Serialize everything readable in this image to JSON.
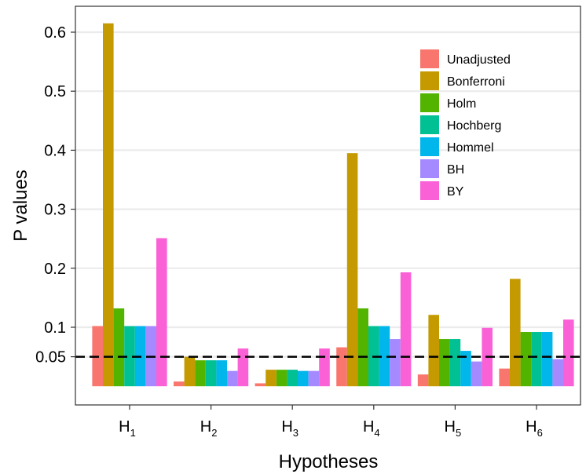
{
  "chart_data": {
    "type": "bar",
    "title": "",
    "xlabel": "Hypotheses",
    "ylabel": "P values",
    "ylim": [
      -0.03,
      0.67
    ],
    "bar_base": 0.0,
    "yticks": [
      {
        "value": 0.05,
        "label": "0.05"
      },
      {
        "value": 0.1,
        "label": "0.1"
      },
      {
        "value": 0.2,
        "label": "0.2"
      },
      {
        "value": 0.3,
        "label": "0.3"
      },
      {
        "value": 0.4,
        "label": "0.4"
      },
      {
        "value": 0.5,
        "label": "0.5"
      },
      {
        "value": 0.6,
        "label": "0.6"
      }
    ],
    "categories": [
      {
        "main": "H",
        "sub": "1"
      },
      {
        "main": "H",
        "sub": "2"
      },
      {
        "main": "H",
        "sub": "3"
      },
      {
        "main": "H",
        "sub": "4"
      },
      {
        "main": "H",
        "sub": "5"
      },
      {
        "main": "H",
        "sub": "6"
      }
    ],
    "reference_line": {
      "value": 0.05,
      "style": "dashed"
    },
    "legend_position": "top-right",
    "series": [
      {
        "name": "Unadjusted",
        "color": "#F8766D",
        "values": [
          0.102,
          0.008,
          0.005,
          0.066,
          0.02,
          0.03
        ]
      },
      {
        "name": "Bonferroni",
        "color": "#C49A00",
        "values": [
          0.615,
          0.05,
          0.028,
          0.395,
          0.121,
          0.182
        ]
      },
      {
        "name": "Holm",
        "color": "#53B400",
        "values": [
          0.132,
          0.044,
          0.028,
          0.132,
          0.08,
          0.092
        ]
      },
      {
        "name": "Hochberg",
        "color": "#00C094",
        "values": [
          0.102,
          0.044,
          0.028,
          0.102,
          0.08,
          0.092
        ]
      },
      {
        "name": "Hommel",
        "color": "#00B6EB",
        "values": [
          0.102,
          0.044,
          0.026,
          0.102,
          0.06,
          0.092
        ]
      },
      {
        "name": "BH",
        "color": "#A58AFF",
        "values": [
          0.102,
          0.026,
          0.026,
          0.08,
          0.042,
          0.046
        ]
      },
      {
        "name": "BY",
        "color": "#FB61D7",
        "values": [
          0.251,
          0.064,
          0.064,
          0.193,
          0.099,
          0.113
        ]
      }
    ]
  }
}
